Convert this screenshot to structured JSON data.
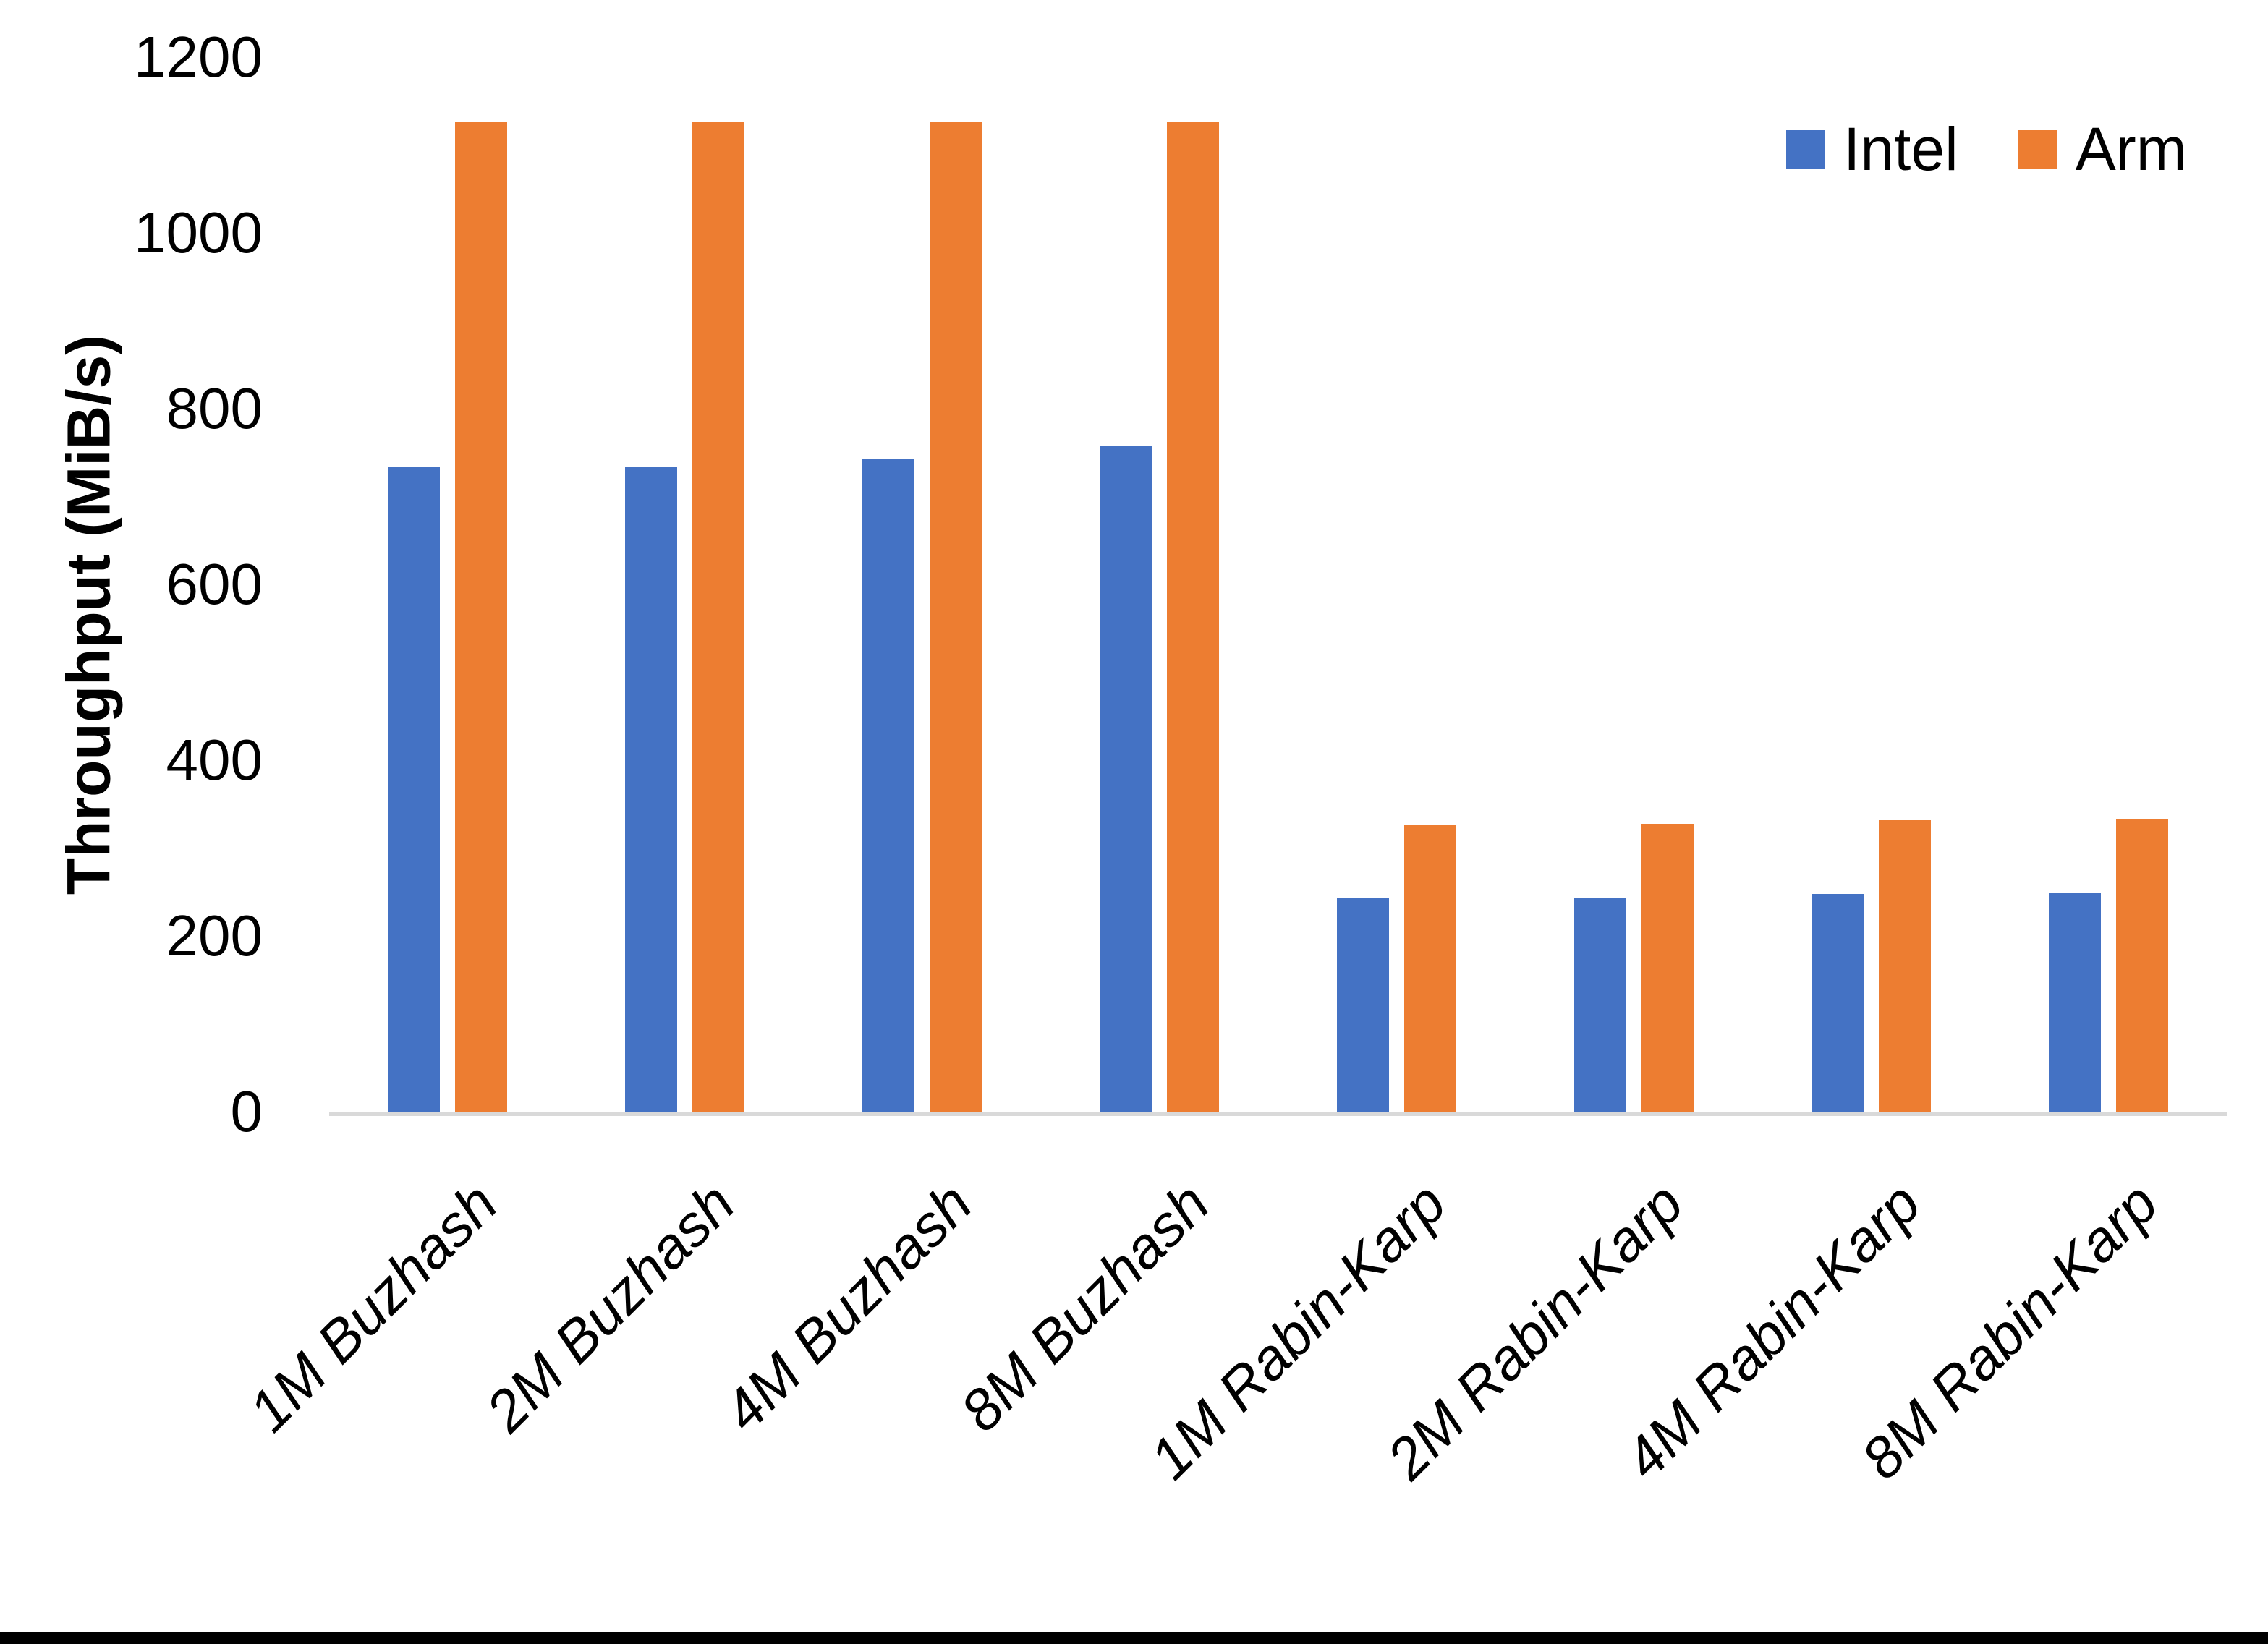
{
  "page": {
    "background": "#FFFFFF",
    "bottom_bar_color": "#000000"
  },
  "chart_data": {
    "type": "bar",
    "title": "",
    "xlabel": "",
    "ylabel": "Throughput (MiB/s)",
    "categories": [
      "1M Buzhash",
      "2M Buzhash",
      "4M Buzhash",
      "8M Buzhash",
      "1M Rabin-Karp",
      "2M Rabin-Karp",
      "4M Rabin-Karp",
      "8M Rabin-Karp"
    ],
    "series": [
      {
        "name": "Intel",
        "color": "#4472C4",
        "values": [
          737,
          737,
          746,
          760,
          246,
          246,
          250,
          251
        ]
      },
      {
        "name": "Arm",
        "color": "#ED7D31",
        "values": [
          1128,
          1128,
          1128,
          1128,
          328,
          330,
          334,
          336
        ]
      }
    ],
    "ylim": [
      0,
      1200
    ],
    "yticks": [
      0,
      200,
      400,
      600,
      800,
      1000,
      1200
    ],
    "grid": false,
    "legend_position": "top-right",
    "axis_line_color": "#D9D9D9",
    "text_color": "#000000"
  }
}
